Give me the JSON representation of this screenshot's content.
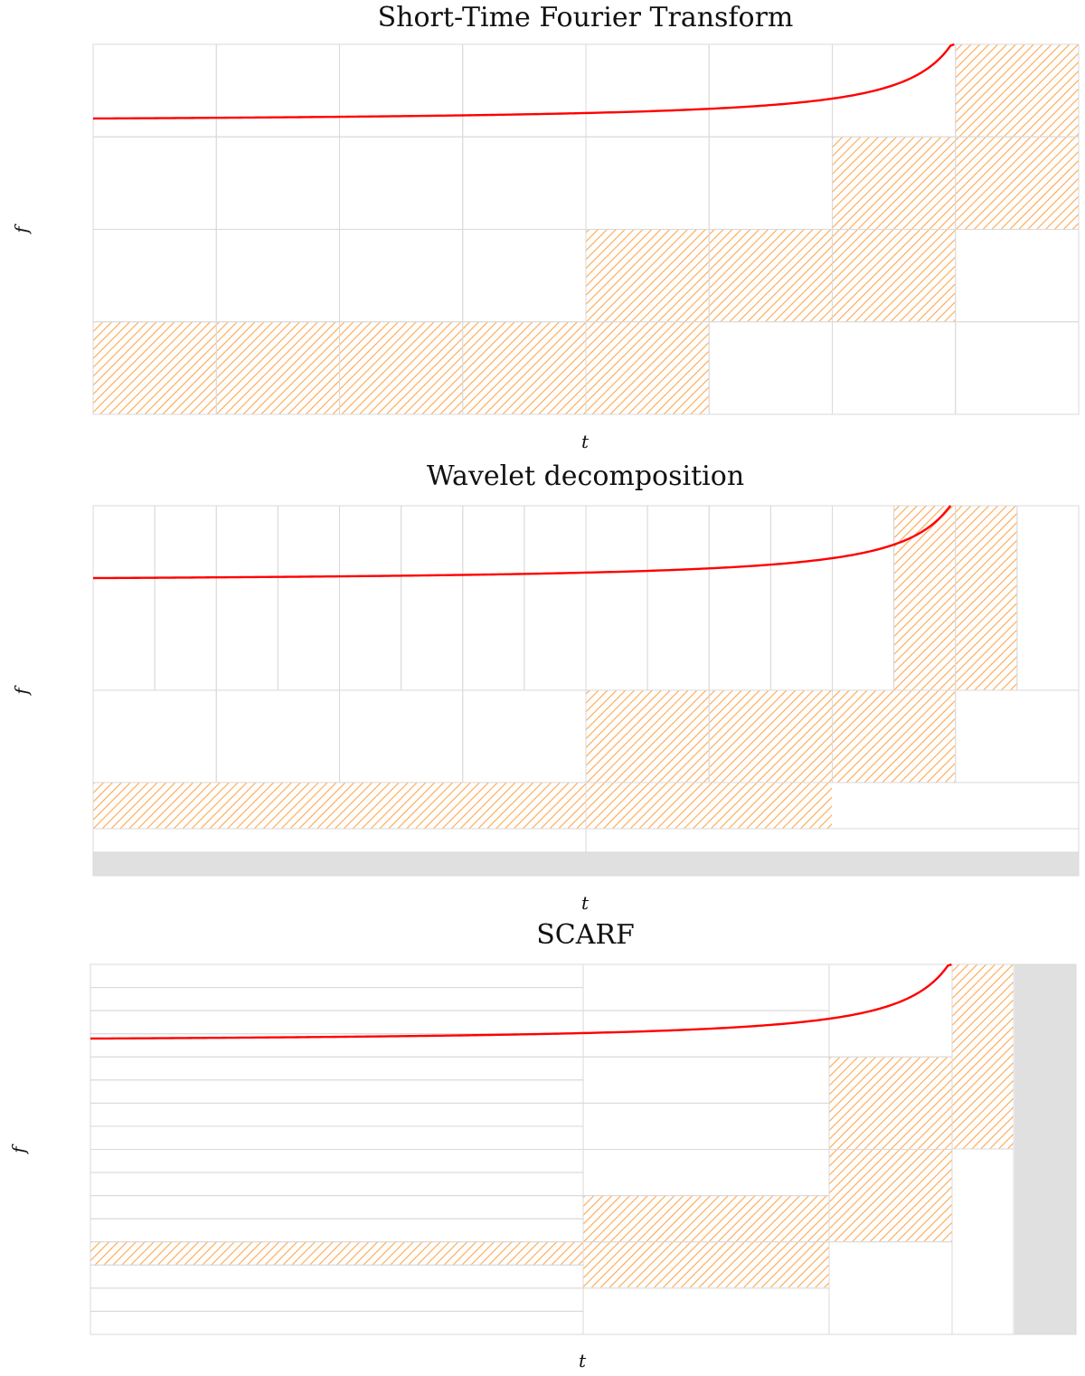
{
  "colors": {
    "curve": "#ff0000",
    "hatch": "#ffa64d",
    "grid": "#d9d9d9",
    "shade": "#e0e0e0",
    "frame": "#d9d9d9"
  },
  "panels": [
    {
      "title": "Short-Time Fourier Transform",
      "xlabel": "t",
      "ylabel": "f"
    },
    {
      "title": "Wavelet decomposition",
      "xlabel": "t",
      "ylabel": "f"
    },
    {
      "title": "SCARF",
      "xlabel": "t",
      "ylabel": "f"
    }
  ]
}
